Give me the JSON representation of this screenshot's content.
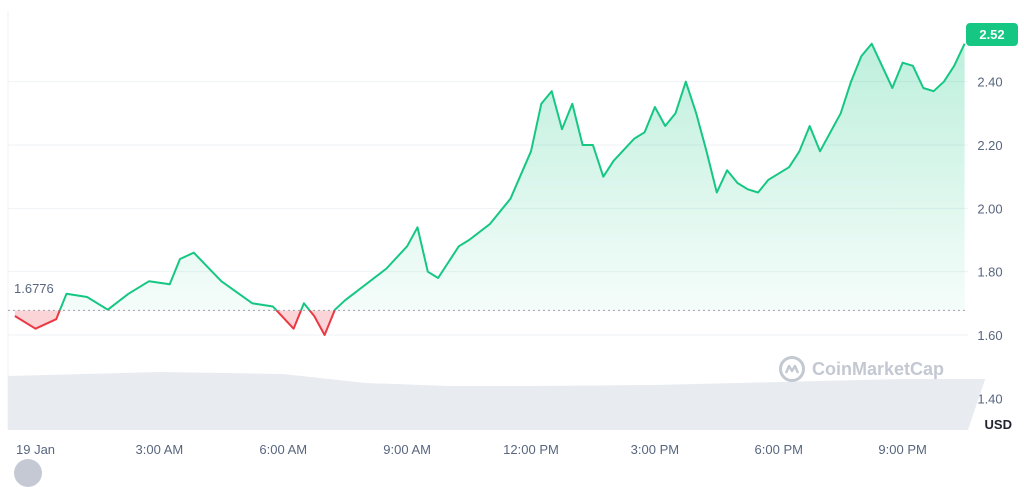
{
  "chart_data": {
    "type": "area",
    "series": [
      {
        "points": [
          [
            "23:30",
            1.66
          ],
          [
            "00:00",
            1.62
          ],
          [
            "00:30",
            1.65
          ],
          [
            "00:45",
            1.73
          ],
          [
            "01:15",
            1.72
          ],
          [
            "01:45",
            1.68
          ],
          [
            "02:15",
            1.73
          ],
          [
            "02:45",
            1.77
          ],
          [
            "03:15",
            1.76
          ],
          [
            "03:30",
            1.84
          ],
          [
            "03:50",
            1.86
          ],
          [
            "04:30",
            1.77
          ],
          [
            "05:15",
            1.7
          ],
          [
            "05:45",
            1.69
          ],
          [
            "06:15",
            1.62
          ],
          [
            "06:30",
            1.7
          ],
          [
            "06:45",
            1.66
          ],
          [
            "07:00",
            1.6
          ],
          [
            "07:15",
            1.68
          ],
          [
            "07:30",
            1.71
          ],
          [
            "08:30",
            1.81
          ],
          [
            "09:00",
            1.88
          ],
          [
            "09:15",
            1.94
          ],
          [
            "09:30",
            1.8
          ],
          [
            "09:45",
            1.78
          ],
          [
            "10:15",
            1.88
          ],
          [
            "10:30",
            1.9
          ],
          [
            "11:00",
            1.95
          ],
          [
            "11:30",
            2.03
          ],
          [
            "12:00",
            2.18
          ],
          [
            "12:15",
            2.33
          ],
          [
            "12:30",
            2.37
          ],
          [
            "12:45",
            2.25
          ],
          [
            "13:00",
            2.33
          ],
          [
            "13:15",
            2.2
          ],
          [
            "13:30",
            2.2
          ],
          [
            "13:45",
            2.1
          ],
          [
            "14:00",
            2.15
          ],
          [
            "14:30",
            2.22
          ],
          [
            "14:45",
            2.24
          ],
          [
            "15:00",
            2.32
          ],
          [
            "15:15",
            2.26
          ],
          [
            "15:30",
            2.3
          ],
          [
            "15:45",
            2.4
          ],
          [
            "16:00",
            2.3
          ],
          [
            "16:15",
            2.18
          ],
          [
            "16:30",
            2.05
          ],
          [
            "16:45",
            2.12
          ],
          [
            "17:00",
            2.08
          ],
          [
            "17:15",
            2.06
          ],
          [
            "17:30",
            2.05
          ],
          [
            "17:45",
            2.09
          ],
          [
            "18:15",
            2.13
          ],
          [
            "18:30",
            2.18
          ],
          [
            "18:45",
            2.26
          ],
          [
            "19:00",
            2.18
          ],
          [
            "19:30",
            2.3
          ],
          [
            "19:45",
            2.4
          ],
          [
            "20:00",
            2.48
          ],
          [
            "20:15",
            2.52
          ],
          [
            "20:30",
            2.45
          ],
          [
            "20:45",
            2.38
          ],
          [
            "21:00",
            2.46
          ],
          [
            "21:15",
            2.45
          ],
          [
            "21:30",
            2.38
          ],
          [
            "21:45",
            2.37
          ],
          [
            "22:00",
            2.4
          ],
          [
            "22:15",
            2.45
          ],
          [
            "22:30",
            2.52
          ]
        ]
      }
    ],
    "reference_value": 1.6776,
    "reference_label": "1.6776",
    "current_value": 2.52,
    "current_label": "2.52",
    "x_ticks": [
      "19 Jan",
      "3:00 AM",
      "6:00 AM",
      "9:00 AM",
      "12:00 PM",
      "3:00 PM",
      "6:00 PM",
      "9:00 PM"
    ],
    "y_ticks": [
      "1.40",
      "1.60",
      "1.80",
      "2.00",
      "2.20",
      "2.40"
    ],
    "ylim": [
      1.3,
      2.62
    ],
    "currency": "USD",
    "watermark": "CoinMarketCap",
    "colors": {
      "up": "#16c784",
      "down": "#ea3943",
      "grid": "#eff2f5",
      "volume": "#e8ebf0",
      "axis_text": "#58667e"
    },
    "grid": true
  }
}
